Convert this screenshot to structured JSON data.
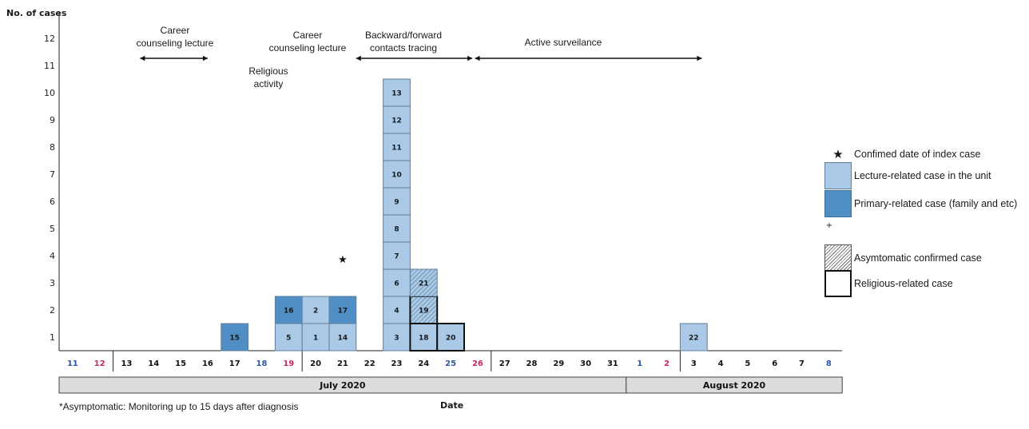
{
  "chart_data": {
    "type": "bar",
    "ylabel": "No. of cases",
    "xlabel": "Date",
    "ylim": [
      0,
      12
    ],
    "y_ticks": [
      "1",
      "2",
      "3",
      "4",
      "5",
      "6",
      "7",
      "8",
      "9",
      "10",
      "11",
      "12"
    ],
    "dates": [
      {
        "label": "11",
        "color": "#2f56a6"
      },
      {
        "label": "12",
        "color": "#c8285a"
      },
      {
        "label": "13",
        "color": "#111111"
      },
      {
        "label": "14",
        "color": "#111111"
      },
      {
        "label": "15",
        "color": "#111111"
      },
      {
        "label": "16",
        "color": "#111111"
      },
      {
        "label": "17",
        "color": "#111111"
      },
      {
        "label": "18",
        "color": "#2f56a6"
      },
      {
        "label": "19",
        "color": "#c8285a"
      },
      {
        "label": "20",
        "color": "#111111"
      },
      {
        "label": "21",
        "color": "#111111"
      },
      {
        "label": "22",
        "color": "#111111"
      },
      {
        "label": "23",
        "color": "#111111"
      },
      {
        "label": "24",
        "color": "#111111"
      },
      {
        "label": "25",
        "color": "#2f56a6"
      },
      {
        "label": "26",
        "color": "#c8285a"
      },
      {
        "label": "27",
        "color": "#111111"
      },
      {
        "label": "28",
        "color": "#111111"
      },
      {
        "label": "29",
        "color": "#111111"
      },
      {
        "label": "30",
        "color": "#111111"
      },
      {
        "label": "31",
        "color": "#111111"
      },
      {
        "label": "1",
        "color": "#2f56a6"
      },
      {
        "label": "2",
        "color": "#c8285a"
      },
      {
        "label": "3",
        "color": "#111111"
      },
      {
        "label": "4",
        "color": "#111111"
      },
      {
        "label": "5",
        "color": "#111111"
      },
      {
        "label": "6",
        "color": "#111111"
      },
      {
        "label": "7",
        "color": "#111111"
      },
      {
        "label": "8",
        "color": "#2f56a6"
      }
    ],
    "months": [
      {
        "label": "July 2020",
        "start": 0,
        "end": 20
      },
      {
        "label": "August 2020",
        "start": 21,
        "end": 28
      }
    ],
    "cases": [
      {
        "date_index": 6,
        "level": 1,
        "label": "15",
        "type": "primary",
        "religious": false,
        "asymptomatic": false
      },
      {
        "date_index": 8,
        "level": 1,
        "label": "5",
        "type": "lecture",
        "religious": false,
        "asymptomatic": false
      },
      {
        "date_index": 8,
        "level": 2,
        "label": "16",
        "type": "primary",
        "religious": false,
        "asymptomatic": false
      },
      {
        "date_index": 9,
        "level": 1,
        "label": "1",
        "type": "lecture",
        "religious": false,
        "asymptomatic": false
      },
      {
        "date_index": 9,
        "level": 2,
        "label": "2",
        "type": "lecture",
        "religious": false,
        "asymptomatic": false
      },
      {
        "date_index": 10,
        "level": 1,
        "label": "14",
        "type": "lecture",
        "religious": false,
        "asymptomatic": false
      },
      {
        "date_index": 10,
        "level": 2,
        "label": "17",
        "type": "primary",
        "religious": false,
        "asymptomatic": false
      },
      {
        "date_index": 12,
        "level": 1,
        "label": "3",
        "type": "lecture",
        "religious": false,
        "asymptomatic": false
      },
      {
        "date_index": 12,
        "level": 2,
        "label": "4",
        "type": "lecture",
        "religious": false,
        "asymptomatic": false
      },
      {
        "date_index": 12,
        "level": 3,
        "label": "6",
        "type": "lecture",
        "religious": false,
        "asymptomatic": false
      },
      {
        "date_index": 12,
        "level": 4,
        "label": "7",
        "type": "lecture",
        "religious": false,
        "asymptomatic": false
      },
      {
        "date_index": 12,
        "level": 5,
        "label": "8",
        "type": "lecture",
        "religious": false,
        "asymptomatic": false
      },
      {
        "date_index": 12,
        "level": 6,
        "label": "9",
        "type": "lecture",
        "religious": false,
        "asymptomatic": false
      },
      {
        "date_index": 12,
        "level": 7,
        "label": "10",
        "type": "lecture",
        "religious": false,
        "asymptomatic": false
      },
      {
        "date_index": 12,
        "level": 8,
        "label": "11",
        "type": "lecture",
        "religious": false,
        "asymptomatic": false
      },
      {
        "date_index": 12,
        "level": 9,
        "label": "12",
        "type": "lecture",
        "religious": false,
        "asymptomatic": false
      },
      {
        "date_index": 12,
        "level": 10,
        "label": "13",
        "type": "lecture",
        "religious": false,
        "asymptomatic": false
      },
      {
        "date_index": 13,
        "level": 1,
        "label": "18",
        "type": "lecture",
        "religious": true,
        "asymptomatic": false
      },
      {
        "date_index": 13,
        "level": 2,
        "label": "19",
        "type": "lecture",
        "religious": true,
        "asymptomatic": true
      },
      {
        "date_index": 13,
        "level": 3,
        "label": "21",
        "type": "lecture",
        "religious": false,
        "asymptomatic": true
      },
      {
        "date_index": 14,
        "level": 1,
        "label": "20",
        "type": "lecture",
        "religious": true,
        "asymptomatic": false
      },
      {
        "date_index": 23,
        "level": 1,
        "label": "22",
        "type": "lecture",
        "religious": false,
        "asymptomatic": false
      }
    ],
    "index_case_star": {
      "date_index": 10,
      "level": 3
    },
    "annotations": [
      {
        "lines": [
          "Career",
          "counseling lecture"
        ],
        "arrow_from": 3,
        "arrow_to": 5.5
      },
      {
        "lines": [
          "Career",
          "counseling lecture"
        ],
        "arrow_from": null,
        "arrow_to": null
      },
      {
        "lines": [
          "Religious",
          "activity"
        ],
        "arrow_from": null,
        "arrow_to": null
      },
      {
        "lines": [
          "Backward/forward",
          "contacts tracing"
        ],
        "arrow_from": 11.0,
        "arrow_to": 15.3
      },
      {
        "lines": [
          "Active surveilance"
        ],
        "arrow_from": 15.4,
        "arrow_to": 23.8
      }
    ],
    "colors": {
      "lecture": "#a9c9e6",
      "primary": "#4f8fc6",
      "border": "#5f7f98",
      "month_band": "#dcdcdc"
    }
  },
  "legend": {
    "star": "★",
    "plus": "+",
    "items": {
      "index": "Confimed date of index case",
      "lecture": "Lecture-related case in the unit",
      "primary": "Primary-related case (family and etc)",
      "asymptomatic": "Asymtomatic confirmed case",
      "religious": "Religious-related case"
    }
  },
  "footnote": "*Asymptomatic: Monitoring up to 15 days after diagnosis"
}
